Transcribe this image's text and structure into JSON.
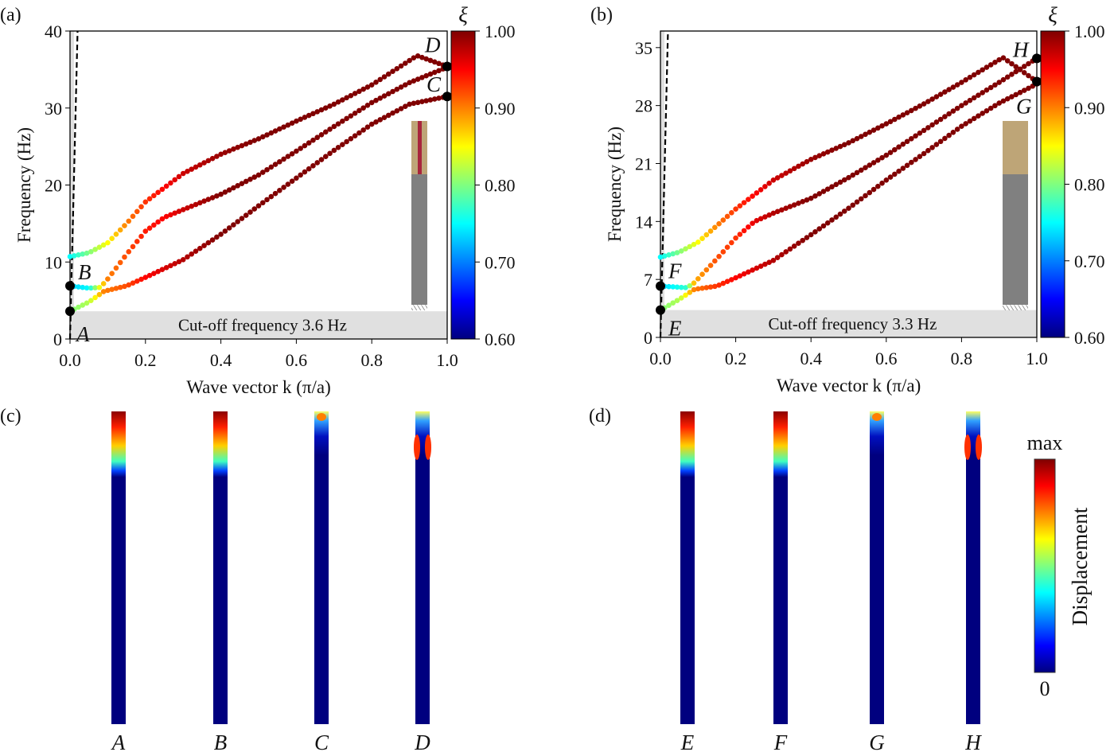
{
  "chart_data": [
    {
      "panel": "(a)",
      "type": "scatter",
      "xlabel": "Wave vector k (π/a)",
      "ylabel": "Frequency (Hz)",
      "xlim": [
        0,
        1
      ],
      "ylim": [
        0,
        40
      ],
      "xticks": [
        "0.0",
        "0.2",
        "0.4",
        "0.6",
        "0.8",
        "1.0"
      ],
      "yticks": [
        "0",
        "10",
        "20",
        "30",
        "40"
      ],
      "ytick_values": [
        0,
        10,
        20,
        30,
        40
      ],
      "colorbar": {
        "label": "ξ",
        "range": [
          0.6,
          1.0
        ],
        "ticks": [
          "0.60",
          "0.70",
          "0.80",
          "0.90",
          "1.00"
        ],
        "colormap": "jet"
      },
      "cutoff": {
        "label": "Cut-off frequency 3.6 Hz",
        "value": 3.6
      },
      "light_line": [
        [
          0,
          0
        ],
        [
          0.02,
          40
        ]
      ],
      "series": [
        {
          "k": [
            0,
            0.05,
            0.1,
            0.15,
            0.2,
            0.3,
            0.4,
            0.5,
            0.6,
            0.7,
            0.8,
            0.92,
            1.0
          ],
          "f": [
            10.7,
            11.2,
            12.5,
            15.0,
            17.8,
            21.5,
            24.0,
            26.0,
            28.3,
            30.5,
            33.0,
            36.8,
            35.4
          ],
          "xi": [
            0.75,
            0.8,
            0.85,
            0.9,
            0.93,
            0.97,
            0.99,
            1,
            1,
            1,
            1,
            1,
            1
          ]
        },
        {
          "k": [
            0,
            0.05,
            0.08,
            0.1,
            0.15,
            0.2,
            0.25,
            0.3,
            0.4,
            0.5,
            0.6,
            0.7,
            0.8,
            0.9,
            1.0
          ],
          "f": [
            6.9,
            6.6,
            6.7,
            7.8,
            11.0,
            14.0,
            15.8,
            16.8,
            18.8,
            21.3,
            24.4,
            27.6,
            30.7,
            33.3,
            35.3
          ],
          "xi": [
            0.73,
            0.75,
            0.85,
            0.9,
            0.92,
            0.94,
            0.95,
            0.97,
            1,
            1,
            1,
            1,
            1,
            1,
            1
          ]
        },
        {
          "k": [
            0,
            0.05,
            0.09,
            0.15,
            0.2,
            0.3,
            0.4,
            0.5,
            0.6,
            0.7,
            0.8,
            0.9,
            1.0
          ],
          "f": [
            3.6,
            4.8,
            6.2,
            6.9,
            8.0,
            10.3,
            13.6,
            17.3,
            20.9,
            24.5,
            27.9,
            30.5,
            31.5
          ],
          "xi": [
            0.8,
            0.82,
            0.9,
            0.92,
            0.95,
            0.98,
            1,
            1,
            1,
            1,
            1,
            1,
            1
          ]
        }
      ],
      "points": [
        {
          "label": "A",
          "k": 0,
          "f": 3.6
        },
        {
          "label": "B",
          "k": 0,
          "f": 6.9
        },
        {
          "label": "C",
          "k": 1,
          "f": 31.5
        },
        {
          "label": "D",
          "k": 1,
          "f": 35.4
        }
      ]
    },
    {
      "panel": "(b)",
      "type": "scatter",
      "xlabel": "Wave vector k (π/a)",
      "ylabel": "Frequency (Hz)",
      "xlim": [
        0,
        1
      ],
      "ylim": [
        0,
        37
      ],
      "xticks": [
        "0.0",
        "0.2",
        "0.4",
        "0.6",
        "0.8",
        "1.0"
      ],
      "yticks": [
        "0",
        "7",
        "14",
        "21",
        "28",
        "35"
      ],
      "ytick_values": [
        0,
        7,
        14,
        21,
        28,
        35
      ],
      "colorbar": {
        "label": "ξ",
        "range": [
          0.6,
          1.0
        ],
        "ticks": [
          "0.60",
          "0.70",
          "0.80",
          "0.90",
          "1.00"
        ],
        "colormap": "jet"
      },
      "cutoff": {
        "label": "Cut-off frequency 3.3 Hz",
        "value": 3.3
      },
      "light_line": [
        [
          0,
          0
        ],
        [
          0.02,
          37
        ]
      ],
      "series": [
        {
          "k": [
            0,
            0.05,
            0.1,
            0.15,
            0.2,
            0.3,
            0.4,
            0.5,
            0.6,
            0.7,
            0.8,
            0.91,
            1.0
          ],
          "f": [
            9.7,
            10.3,
            11.5,
            13.5,
            15.5,
            19.0,
            21.5,
            23.5,
            25.8,
            28.2,
            30.8,
            33.8,
            30.9
          ],
          "xi": [
            0.75,
            0.8,
            0.85,
            0.9,
            0.93,
            0.97,
            0.99,
            1,
            1,
            1,
            1,
            1,
            1
          ]
        },
        {
          "k": [
            0,
            0.07,
            0.09,
            0.15,
            0.2,
            0.25,
            0.3,
            0.4,
            0.5,
            0.6,
            0.7,
            0.8,
            0.9,
            1.0
          ],
          "f": [
            6.2,
            6.0,
            6.6,
            9.5,
            12.0,
            14.0,
            15.0,
            16.8,
            19.3,
            22.0,
            25.0,
            28.0,
            30.8,
            33.7
          ],
          "xi": [
            0.73,
            0.77,
            0.88,
            0.92,
            0.93,
            0.96,
            0.98,
            1,
            1,
            1,
            1,
            1,
            1,
            1
          ]
        },
        {
          "k": [
            0,
            0.05,
            0.09,
            0.15,
            0.2,
            0.3,
            0.4,
            0.5,
            0.6,
            0.7,
            0.8,
            0.9,
            1.0
          ],
          "f": [
            3.3,
            4.6,
            5.8,
            6.2,
            7.2,
            9.3,
            12.4,
            15.6,
            19.0,
            22.2,
            25.5,
            28.3,
            30.6
          ],
          "xi": [
            0.8,
            0.82,
            0.9,
            0.93,
            0.95,
            0.98,
            1,
            1,
            1,
            1,
            1,
            1,
            1
          ]
        }
      ],
      "points": [
        {
          "label": "E",
          "k": 0,
          "f": 3.3
        },
        {
          "label": "F",
          "k": 0,
          "f": 6.2
        },
        {
          "label": "G",
          "k": 1,
          "f": 30.9
        },
        {
          "label": "H",
          "k": 1,
          "f": 33.7
        }
      ]
    }
  ],
  "mode_panels": [
    {
      "panel": "(c)",
      "modes": [
        "A",
        "B",
        "C",
        "D"
      ]
    },
    {
      "panel": "(d)",
      "modes": [
        "E",
        "F",
        "G",
        "H"
      ]
    }
  ],
  "displacement_colorbar": {
    "label": "Displacement",
    "max_label": "max",
    "min_label": "0"
  }
}
